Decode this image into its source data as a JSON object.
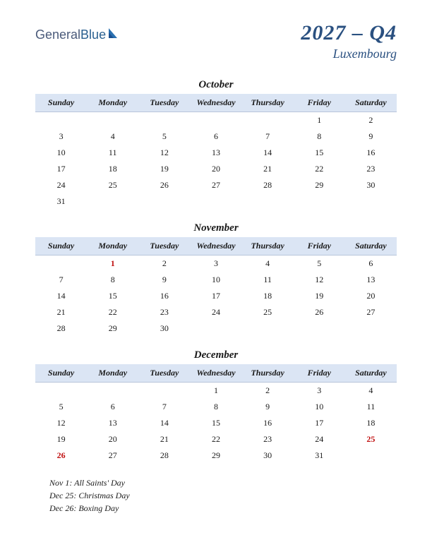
{
  "logo": {
    "part1": "General",
    "part2": "Blue"
  },
  "period": "2027 – Q4",
  "country": "Luxembourg",
  "weekday_labels": [
    "Sunday",
    "Monday",
    "Tuesday",
    "Wednesday",
    "Thursday",
    "Friday",
    "Saturday"
  ],
  "header_bg": "#dbe5f4",
  "title_color": "#2a5080",
  "holiday_color": "#c01010",
  "text_color": "#1a1a1a",
  "months": [
    {
      "name": "October",
      "weeks": [
        [
          "",
          "",
          "",
          "",
          "",
          "1",
          "2"
        ],
        [
          "3",
          "4",
          "5",
          "6",
          "7",
          "8",
          "9"
        ],
        [
          "10",
          "11",
          "12",
          "13",
          "14",
          "15",
          "16"
        ],
        [
          "17",
          "18",
          "19",
          "20",
          "21",
          "22",
          "23"
        ],
        [
          "24",
          "25",
          "26",
          "27",
          "28",
          "29",
          "30"
        ],
        [
          "31",
          "",
          "",
          "",
          "",
          "",
          ""
        ]
      ],
      "holidays": []
    },
    {
      "name": "November",
      "weeks": [
        [
          "",
          "1",
          "2",
          "3",
          "4",
          "5",
          "6"
        ],
        [
          "7",
          "8",
          "9",
          "10",
          "11",
          "12",
          "13"
        ],
        [
          "14",
          "15",
          "16",
          "17",
          "18",
          "19",
          "20"
        ],
        [
          "21",
          "22",
          "23",
          "24",
          "25",
          "26",
          "27"
        ],
        [
          "28",
          "29",
          "30",
          "",
          "",
          "",
          ""
        ]
      ],
      "holidays": [
        "1"
      ]
    },
    {
      "name": "December",
      "weeks": [
        [
          "",
          "",
          "",
          "1",
          "2",
          "3",
          "4"
        ],
        [
          "5",
          "6",
          "7",
          "8",
          "9",
          "10",
          "11"
        ],
        [
          "12",
          "13",
          "14",
          "15",
          "16",
          "17",
          "18"
        ],
        [
          "19",
          "20",
          "21",
          "22",
          "23",
          "24",
          "25"
        ],
        [
          "26",
          "27",
          "28",
          "29",
          "30",
          "31",
          ""
        ]
      ],
      "holidays": [
        "25",
        "26"
      ]
    }
  ],
  "holiday_list": [
    "Nov 1: All Saints' Day",
    "Dec 25: Christmas Day",
    "Dec 26: Boxing Day"
  ]
}
